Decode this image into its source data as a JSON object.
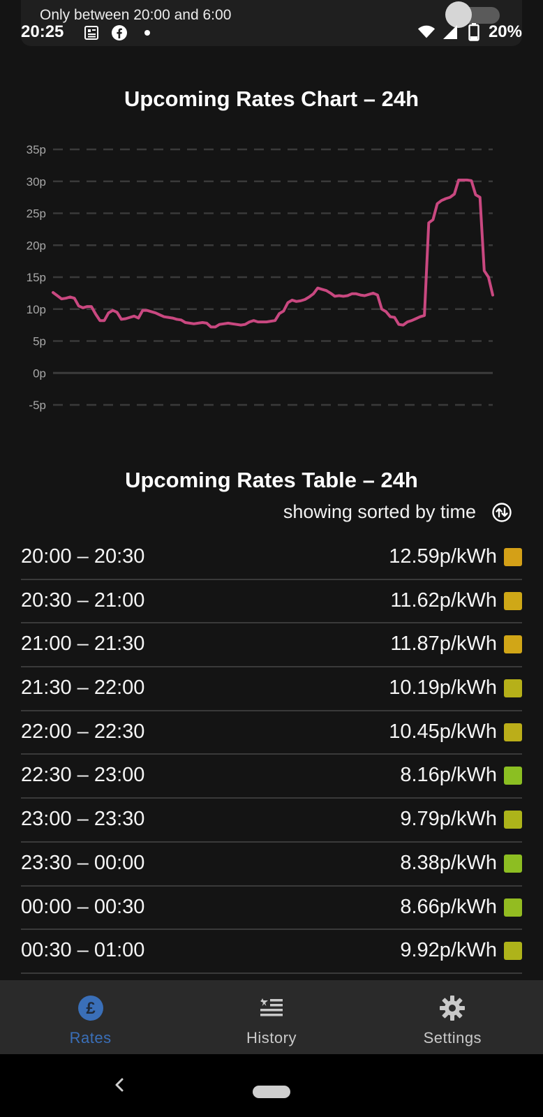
{
  "status_bar": {
    "filter_text": "Only between 20:00 and 6:00",
    "time": "20:25",
    "battery": "20%",
    "icons_left": [
      "news-icon",
      "facebook-icon",
      "dot-icon"
    ],
    "icons_right": [
      "wifi-icon",
      "signal-icon",
      "battery-icon"
    ]
  },
  "chart_section": {
    "title": "Upcoming Rates Chart – 24h"
  },
  "chart_data": {
    "type": "line",
    "title": "Upcoming Rates Chart – 24h",
    "xlabel": "",
    "ylabel": "",
    "ylim": [
      -5,
      35
    ],
    "y_ticks": [
      "35p",
      "30p",
      "25p",
      "20p",
      "15p",
      "10p",
      "5p",
      "0p",
      "-5p"
    ],
    "y_tick_values": [
      35,
      30,
      25,
      20,
      15,
      10,
      5,
      0,
      -5
    ],
    "grid": "dashed horizontal",
    "line_color": "#c94880",
    "series": [
      {
        "values": [
          12.6,
          12.1,
          11.6,
          11.7,
          11.9,
          11.7,
          10.5,
          10.2,
          10.4,
          10.4,
          9.2,
          8.2,
          8.2,
          9.4,
          9.8,
          9.5,
          8.4,
          8.5,
          8.7,
          8.9,
          8.6,
          9.8,
          9.8,
          9.6,
          9.4,
          9.1,
          8.8,
          8.7,
          8.6,
          8.4,
          8.3,
          7.9,
          7.8,
          7.7,
          7.8,
          7.9,
          7.8,
          7.2,
          7.2,
          7.6,
          7.7,
          7.8,
          7.7,
          7.6,
          7.5,
          7.6,
          8.0,
          8.2,
          8.0,
          8.0,
          8.0,
          8.1,
          8.2,
          9.3,
          9.7,
          11.0,
          11.4,
          11.2,
          11.3,
          11.5,
          11.9,
          12.4,
          13.3,
          13.1,
          12.9,
          12.5,
          12.0,
          12.1,
          12.0,
          12.1,
          12.4,
          12.4,
          12.2,
          12.1,
          12.3,
          12.5,
          12.2,
          10.0,
          9.6,
          8.8,
          8.7,
          7.6,
          7.5,
          8.0,
          8.2,
          8.5,
          8.8,
          9.0,
          23.5,
          24.0,
          26.5,
          27.0,
          27.3,
          27.5,
          28.0,
          30.2,
          30.2,
          30.2,
          30.1,
          27.9,
          27.5,
          16.0,
          15.0,
          12.2
        ]
      }
    ]
  },
  "table_section": {
    "title": "Upcoming Rates Table – 24h",
    "sort_label": "showing sorted by time",
    "sort_icon": "swap-vertical-icon"
  },
  "rates": [
    {
      "time": "20:00 – 20:30",
      "value": "12.59p/kWh",
      "color": "#d4a017"
    },
    {
      "time": "20:30 – 21:00",
      "value": "11.62p/kWh",
      "color": "#cfa817"
    },
    {
      "time": "21:00 – 21:30",
      "value": "11.87p/kWh",
      "color": "#d1a617"
    },
    {
      "time": "21:30 – 22:00",
      "value": "10.19p/kWh",
      "color": "#b6b019"
    },
    {
      "time": "22:00 – 22:30",
      "value": "10.45p/kWh",
      "color": "#bbae19"
    },
    {
      "time": "22:30 – 23:00",
      "value": "8.16p/kWh",
      "color": "#8bbf22"
    },
    {
      "time": "23:00 – 23:30",
      "value": "9.79p/kWh",
      "color": "#adb41a"
    },
    {
      "time": "23:30 – 00:00",
      "value": "8.38p/kWh",
      "color": "#8dbe22"
    },
    {
      "time": "00:00 – 00:30",
      "value": "8.66p/kWh",
      "color": "#93bc21"
    },
    {
      "time": "00:30 – 01:00",
      "value": "9.92p/kWh",
      "color": "#aeb31a"
    }
  ],
  "bottom_nav": {
    "items": [
      {
        "label": "Rates",
        "icon": "pound-icon",
        "active": true
      },
      {
        "label": "History",
        "icon": "history-icon",
        "active": false
      },
      {
        "label": "Settings",
        "icon": "gear-icon",
        "active": false
      }
    ],
    "active_color": "#3a6fb8"
  },
  "system_nav": {
    "back_icon": "back-chevron-icon",
    "home_icon": "home-pill-icon"
  }
}
